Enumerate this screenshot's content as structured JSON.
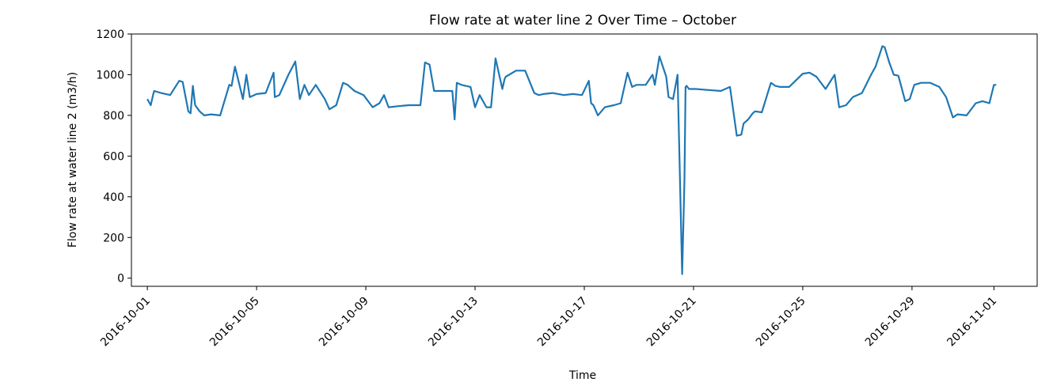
{
  "chart_data": {
    "type": "line",
    "title": "Flow rate at water line 2 Over Time – October",
    "xlabel": "Time",
    "ylabel": "Flow rate at water line 2 (m3/h)",
    "xlim": [
      "2016-09-30T10:00",
      "2016-11-02T14:00"
    ],
    "ylim": [
      -40,
      1200
    ],
    "y_ticks": [
      0,
      200,
      400,
      600,
      800,
      1000,
      1200
    ],
    "x_ticks": [
      "2016-10-01",
      "2016-10-05",
      "2016-10-09",
      "2016-10-13",
      "2016-10-17",
      "2016-10-21",
      "2016-10-25",
      "2016-10-29",
      "2016-11-01"
    ],
    "grid": false,
    "color": "#1f77b4",
    "series": [
      {
        "x": [
          "2016-10-01T00:00",
          "2016-10-01T03:00",
          "2016-10-01T05:00",
          "2016-10-01T06:00",
          "2016-10-01T12:00",
          "2016-10-01T20:00",
          "2016-10-02T04:00",
          "2016-10-02T07:00",
          "2016-10-02T12:00",
          "2016-10-02T14:00",
          "2016-10-02T16:00",
          "2016-10-02T18:00",
          "2016-10-02T22:00",
          "2016-10-03T02:00",
          "2016-10-03T08:00",
          "2016-10-03T16:00",
          "2016-10-04T00:00",
          "2016-10-04T02:00",
          "2016-10-04T05:00",
          "2016-10-04T12:00",
          "2016-10-04T15:00",
          "2016-10-04T18:00",
          "2016-10-04T22:00",
          "2016-10-05T00:00",
          "2016-10-05T08:00",
          "2016-10-05T15:00",
          "2016-10-05T16:00",
          "2016-10-05T20:00",
          "2016-10-06T04:00",
          "2016-10-06T10:00",
          "2016-10-06T14:00",
          "2016-10-06T18:00",
          "2016-10-06T22:00",
          "2016-10-07T04:00",
          "2016-10-07T12:00",
          "2016-10-07T16:00",
          "2016-10-07T22:00",
          "2016-10-08T04:00",
          "2016-10-08T08:00",
          "2016-10-08T14:00",
          "2016-10-08T22:00",
          "2016-10-09T06:00",
          "2016-10-09T12:00",
          "2016-10-09T16:00",
          "2016-10-09T20:00",
          "2016-10-10T04:00",
          "2016-10-10T14:00",
          "2016-10-11T00:00",
          "2016-10-11T04:00",
          "2016-10-11T08:00",
          "2016-10-11T12:00",
          "2016-10-11T20:00",
          "2016-10-12T04:00",
          "2016-10-12T06:00",
          "2016-10-12T08:00",
          "2016-10-12T12:00",
          "2016-10-12T20:00",
          "2016-10-13T00:00",
          "2016-10-13T04:00",
          "2016-10-13T10:00",
          "2016-10-13T14:00",
          "2016-10-13T18:00",
          "2016-10-14T00:00",
          "2016-10-14T02:00",
          "2016-10-14T03:00",
          "2016-10-14T06:00",
          "2016-10-14T12:00",
          "2016-10-14T20:00",
          "2016-10-15T04:00",
          "2016-10-15T08:00",
          "2016-10-15T12:00",
          "2016-10-15T20:00",
          "2016-10-16T06:00",
          "2016-10-16T14:00",
          "2016-10-16T22:00",
          "2016-10-17T04:00",
          "2016-10-17T06:00",
          "2016-10-17T08:00",
          "2016-10-17T12:00",
          "2016-10-17T18:00",
          "2016-10-18T02:00",
          "2016-10-18T08:00",
          "2016-10-18T14:00",
          "2016-10-18T18:00",
          "2016-10-18T22:00",
          "2016-10-19T06:00",
          "2016-10-19T12:00",
          "2016-10-19T14:00",
          "2016-10-19T18:00",
          "2016-10-20T00:00",
          "2016-10-20T02:00",
          "2016-10-20T06:00",
          "2016-10-20T10:00",
          "2016-10-20T14:00",
          "2016-10-20T16:00",
          "2016-10-20T17:00",
          "2016-10-20T18:00",
          "2016-10-20T20:00",
          "2016-10-21T02:00",
          "2016-10-21T12:00",
          "2016-10-22T00:00",
          "2016-10-22T08:00",
          "2016-10-22T14:00",
          "2016-10-22T18:00",
          "2016-10-22T20:00",
          "2016-10-23T00:00",
          "2016-10-23T04:00",
          "2016-10-23T06:00",
          "2016-10-23T12:00",
          "2016-10-23T20:00",
          "2016-10-24T00:00",
          "2016-10-24T04:00",
          "2016-10-24T12:00",
          "2016-10-25T00:00",
          "2016-10-25T06:00",
          "2016-10-25T12:00",
          "2016-10-25T20:00",
          "2016-10-26T04:00",
          "2016-10-26T08:00",
          "2016-10-26T14:00",
          "2016-10-26T20:00",
          "2016-10-27T04:00",
          "2016-10-27T12:00",
          "2016-10-27T16:00",
          "2016-10-27T22:00",
          "2016-10-28T00:00",
          "2016-10-28T04:00",
          "2016-10-28T08:00",
          "2016-10-28T12:00",
          "2016-10-28T18:00",
          "2016-10-28T22:00",
          "2016-10-29T02:00",
          "2016-10-29T08:00",
          "2016-10-29T16:00",
          "2016-10-30T00:00",
          "2016-10-30T06:00",
          "2016-10-30T12:00",
          "2016-10-30T16:00",
          "2016-10-31T00:00",
          "2016-10-31T08:00",
          "2016-10-31T14:00",
          "2016-10-31T20:00",
          "2016-11-01T00:00",
          "2016-11-01T02:00"
        ],
        "y": [
          880,
          850,
          900,
          920,
          910,
          900,
          970,
          965,
          820,
          810,
          945,
          850,
          820,
          800,
          805,
          800,
          950,
          945,
          1040,
          880,
          1000,
          890,
          900,
          905,
          910,
          1010,
          890,
          900,
          1000,
          1065,
          880,
          950,
          900,
          950,
          880,
          830,
          850,
          960,
          950,
          920,
          900,
          840,
          860,
          900,
          840,
          845,
          850,
          850,
          1060,
          1050,
          920,
          920,
          920,
          780,
          960,
          950,
          940,
          840,
          900,
          840,
          840,
          1080,
          930,
          980,
          990,
          1000,
          1020,
          1020,
          910,
          900,
          905,
          910,
          900,
          905,
          900,
          970,
          860,
          850,
          800,
          840,
          850,
          860,
          1010,
          940,
          950,
          950,
          1000,
          950,
          1090,
          990,
          890,
          880,
          1000,
          20,
          480,
          940,
          945,
          930,
          930,
          925,
          920,
          940,
          700,
          705,
          760,
          780,
          810,
          820,
          815,
          960,
          945,
          940,
          940,
          1005,
          1010,
          990,
          930,
          1000,
          840,
          850,
          890,
          910,
          1000,
          1040,
          1140,
          1135,
          1060,
          1000,
          995,
          870,
          880,
          950,
          960,
          960,
          940,
          890,
          790,
          805,
          800,
          860,
          870,
          860,
          950,
          950
        ]
      }
    ]
  }
}
